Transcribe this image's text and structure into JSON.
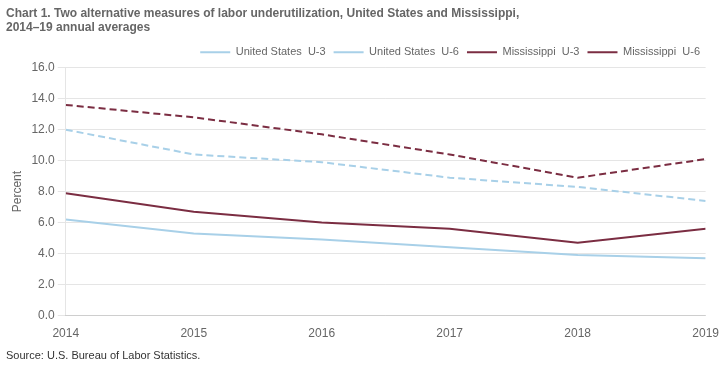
{
  "chart_data": {
    "type": "line",
    "title": [
      "Chart 1. Two alternative measures of labor underutilization, United States and Mississippi,",
      "2014–19 annual averages"
    ],
    "ylabel": "Percent",
    "annotations": [
      "Source: U.S. Bureau of Labor Statistics."
    ],
    "x": [
      2014,
      2015,
      2016,
      2017,
      2018,
      2019
    ],
    "xlim": [
      2014,
      2019
    ],
    "xticks": [
      2014,
      2015,
      2016,
      2017,
      2018,
      2019
    ],
    "ylim": [
      0.0,
      16.0
    ],
    "yticks": [
      {
        "value": 0,
        "label": "0.0"
      },
      {
        "value": 2,
        "label": "2.0"
      },
      {
        "value": 4,
        "label": "4.0"
      },
      {
        "value": 6,
        "label": "6.0"
      },
      {
        "value": 8,
        "label": "8.0"
      },
      {
        "value": 10,
        "label": "10.0"
      },
      {
        "value": 12,
        "label": "12.0"
      },
      {
        "value": 14,
        "label": "14.0"
      },
      {
        "value": 16,
        "label": "16.0"
      }
    ],
    "grid": "y",
    "legend": "top-right",
    "series": [
      {
        "name": "United States  U-3",
        "color": "#a8d0e8",
        "line_style": "solid",
        "values": [
          6.2,
          5.3,
          4.9,
          4.4,
          3.9,
          3.7
        ]
      },
      {
        "name": "United States  U-6",
        "color": "#a8d0e8",
        "line_style": "dashed",
        "values": [
          12.0,
          10.4,
          9.9,
          8.9,
          8.3,
          7.4
        ]
      },
      {
        "name": "Mississippi  U-3",
        "color": "#7B2D42",
        "line_style": "solid",
        "values": [
          7.9,
          6.7,
          6.0,
          5.6,
          4.7,
          5.6
        ]
      },
      {
        "name": "Mississippi  U-6",
        "color": "#7B2D42",
        "line_style": "dashed",
        "values": [
          13.6,
          12.8,
          11.7,
          10.4,
          8.9,
          10.1
        ]
      }
    ]
  }
}
